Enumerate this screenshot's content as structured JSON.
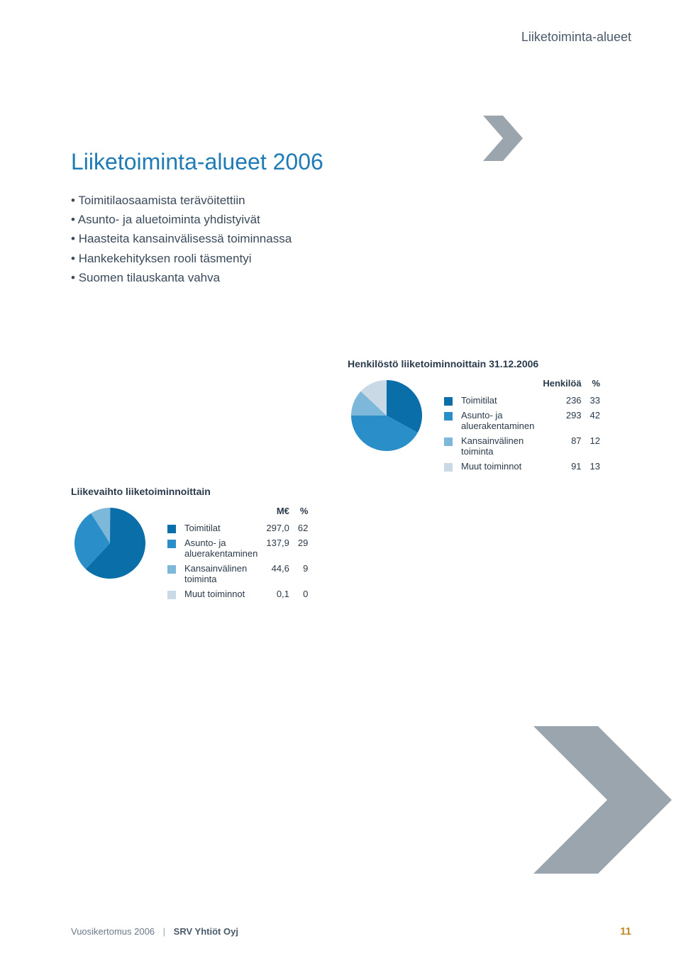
{
  "header_label": "Liiketoiminta-alueet",
  "main_title": "Liiketoiminta-alueet 2006",
  "bullets": [
    "Toimitilaosaamista terävöitettiin",
    "Asunto- ja aluetoiminta yhdistyivät",
    "Haasteita kansainvälisessä toiminnassa",
    "Hankekehityksen rooli täsmentyi",
    "Suomen tilauskanta vahva"
  ],
  "arrow_small": {
    "fill": "#9aa5ad"
  },
  "arrow_big": {
    "fill": "#9aa5ad"
  },
  "personnel": {
    "title": "Henkilöstö liiketoiminnoittain 31.12.2006",
    "col1": "Henkilöä",
    "col2": "%",
    "rows": [
      {
        "label": "Toimitilat",
        "val": "236",
        "pct": "33",
        "color": "#0a6ea8",
        "slice_pct": 33
      },
      {
        "label": "Asunto- ja\naluerakentaminen",
        "val": "293",
        "pct": "42",
        "color": "#2a8fc9",
        "slice_pct": 42
      },
      {
        "label": "Kansainvälinen\ntoiminta",
        "val": "87",
        "pct": "12",
        "color": "#7db7d9",
        "slice_pct": 12
      },
      {
        "label": "Muut toiminnot",
        "val": "91",
        "pct": "13",
        "color": "#c9d9e5",
        "slice_pct": 13
      }
    ]
  },
  "revenue": {
    "title": "Liikevaihto liiketoiminnoittain",
    "col1": "M€",
    "col2": "%",
    "rows": [
      {
        "label": "Toimitilat",
        "val": "297,0",
        "pct": "62",
        "color": "#0a6ea8",
        "slice_pct": 62
      },
      {
        "label": "Asunto- ja\naluerakentaminen",
        "val": "137,9",
        "pct": "29",
        "color": "#2a8fc9",
        "slice_pct": 29
      },
      {
        "label": "Kansainvälinen\ntoiminta",
        "val": "44,6",
        "pct": "9",
        "color": "#7db7d9",
        "slice_pct": 9
      },
      {
        "label": "Muut toiminnot",
        "val": "0,1",
        "pct": "0",
        "color": "#c9d9e5",
        "slice_pct": 0.1
      }
    ]
  },
  "footer": {
    "left1": "Vuosikertomus 2006",
    "left2": "SRV Yhtiöt Oyj",
    "pagenum": "11"
  }
}
